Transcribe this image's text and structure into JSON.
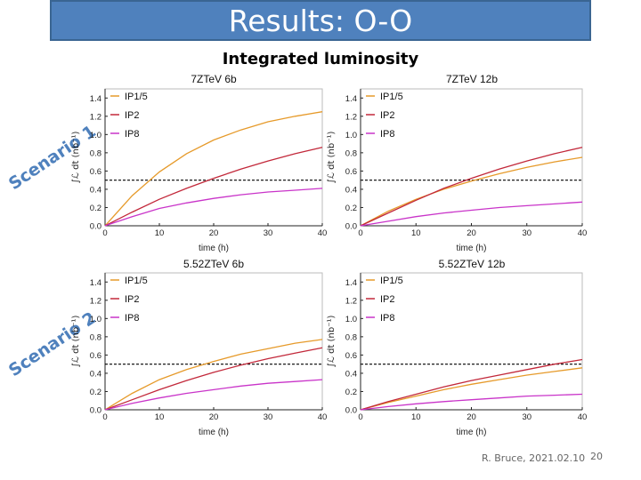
{
  "slide": {
    "title": "Results: O-O",
    "subtitle": "Integrated luminosity",
    "scenario_1": "Scenario 1",
    "scenario_2": "Scenario 2",
    "footer_credit": "R. Bruce, 2021.02.10",
    "page_number": "20"
  },
  "colors": {
    "IP1/5": "#e69a2a",
    "IP2": "#c2283a",
    "IP8": "#c934c9",
    "title_bg": "#4f81bd",
    "scenario_text": "#4f81bd"
  },
  "chart_data": [
    {
      "type": "line",
      "title": "7ZTeV 6b",
      "xlabel": "time (h)",
      "ylabel": "∫ℒ dt (nb⁻¹)",
      "xlim": [
        0,
        40
      ],
      "ylim": [
        0,
        1.5
      ],
      "xticks": [
        "0",
        "10",
        "20",
        "30",
        "40"
      ],
      "yticks": [
        "0.0",
        "0.2",
        "0.4",
        "0.6",
        "0.8",
        "1.0",
        "1.2",
        "1.4"
      ],
      "target_line": 0.5,
      "x": [
        0,
        5,
        10,
        15,
        20,
        25,
        30,
        35,
        40
      ],
      "series": [
        {
          "name": "IP1/5",
          "values": [
            0,
            0.33,
            0.59,
            0.79,
            0.94,
            1.05,
            1.14,
            1.2,
            1.25
          ]
        },
        {
          "name": "IP2",
          "values": [
            0,
            0.15,
            0.29,
            0.41,
            0.52,
            0.62,
            0.71,
            0.79,
            0.86
          ]
        },
        {
          "name": "IP8",
          "values": [
            0,
            0.1,
            0.19,
            0.25,
            0.3,
            0.34,
            0.37,
            0.39,
            0.41
          ]
        }
      ]
    },
    {
      "type": "line",
      "title": "7ZTeV 12b",
      "xlabel": "time (h)",
      "ylabel": "∫ℒ dt (nb⁻¹)",
      "xlim": [
        0,
        40
      ],
      "ylim": [
        0,
        1.5
      ],
      "xticks": [
        "0",
        "10",
        "20",
        "30",
        "40"
      ],
      "yticks": [
        "0.0",
        "0.2",
        "0.4",
        "0.6",
        "0.8",
        "1.0",
        "1.2",
        "1.4"
      ],
      "target_line": 0.5,
      "x": [
        0,
        5,
        10,
        15,
        20,
        25,
        30,
        35,
        40
      ],
      "series": [
        {
          "name": "IP1/5",
          "values": [
            0,
            0.16,
            0.29,
            0.4,
            0.49,
            0.57,
            0.64,
            0.7,
            0.75
          ]
        },
        {
          "name": "IP2",
          "values": [
            0,
            0.14,
            0.28,
            0.41,
            0.52,
            0.62,
            0.71,
            0.79,
            0.86
          ]
        },
        {
          "name": "IP8",
          "values": [
            0,
            0.05,
            0.1,
            0.14,
            0.17,
            0.2,
            0.22,
            0.24,
            0.26
          ]
        }
      ]
    },
    {
      "type": "line",
      "title": "5.52ZTeV 6b",
      "xlabel": "time (h)",
      "ylabel": "∫ℒ dt (nb⁻¹)",
      "xlim": [
        0,
        40
      ],
      "ylim": [
        0,
        1.5
      ],
      "xticks": [
        "0",
        "10",
        "20",
        "30",
        "40"
      ],
      "yticks": [
        "0.0",
        "0.2",
        "0.4",
        "0.6",
        "0.8",
        "1.0",
        "1.2",
        "1.4"
      ],
      "target_line": 0.5,
      "x": [
        0,
        5,
        10,
        15,
        20,
        25,
        30,
        35,
        40
      ],
      "series": [
        {
          "name": "IP1/5",
          "values": [
            0,
            0.18,
            0.33,
            0.44,
            0.53,
            0.61,
            0.67,
            0.73,
            0.77
          ]
        },
        {
          "name": "IP2",
          "values": [
            0,
            0.11,
            0.22,
            0.32,
            0.41,
            0.49,
            0.56,
            0.62,
            0.68
          ]
        },
        {
          "name": "IP8",
          "values": [
            0,
            0.07,
            0.13,
            0.18,
            0.22,
            0.26,
            0.29,
            0.31,
            0.33
          ]
        }
      ]
    },
    {
      "type": "line",
      "title": "5.52ZTeV 12b",
      "xlabel": "time (h)",
      "ylabel": "∫ℒ dt (nb⁻¹)",
      "xlim": [
        0,
        40
      ],
      "ylim": [
        0,
        1.5
      ],
      "xticks": [
        "0",
        "10",
        "20",
        "30",
        "40"
      ],
      "yticks": [
        "0.0",
        "0.2",
        "0.4",
        "0.6",
        "0.8",
        "1.0",
        "1.2",
        "1.4"
      ],
      "target_line": 0.5,
      "x": [
        0,
        5,
        10,
        15,
        20,
        25,
        30,
        35,
        40
      ],
      "series": [
        {
          "name": "IP1/5",
          "values": [
            0,
            0.08,
            0.15,
            0.22,
            0.28,
            0.33,
            0.38,
            0.42,
            0.46
          ]
        },
        {
          "name": "IP2",
          "values": [
            0,
            0.09,
            0.17,
            0.25,
            0.32,
            0.38,
            0.44,
            0.5,
            0.55
          ]
        },
        {
          "name": "IP8",
          "values": [
            0,
            0.035,
            0.065,
            0.09,
            0.11,
            0.13,
            0.15,
            0.16,
            0.17
          ]
        }
      ]
    }
  ]
}
